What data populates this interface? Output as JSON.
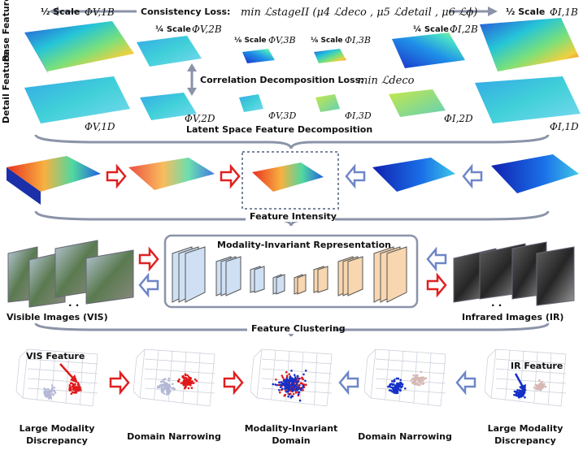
{
  "row_labels": {
    "base": "Base Feature",
    "detail": "Detail Feature"
  },
  "scales": {
    "half": "½ Scale",
    "quarter": "¼ Scale",
    "eighth": "⅛ Scale"
  },
  "feature_symbols": {
    "v1b": "ΦV,1B",
    "v2b": "ΦV,2B",
    "v3b": "ΦV,3B",
    "i3b": "ΦI,3B",
    "i2b": "ΦI,2B",
    "i1b": "ΦI,1B",
    "v1d": "ΦV,1D",
    "v2d": "ΦV,2D",
    "v3d": "ΦV,3D",
    "i3d": "ΦI,3D",
    "i2d": "ΦI,2D",
    "i1d": "ΦI,1D"
  },
  "consistency_loss": {
    "label": "Consistency Loss:",
    "formula": "min ℒstageII (μ4 ℒdeco ,  μ5 ℒdetail ,  μ6 ℒϕ)"
  },
  "correlation_loss": {
    "label": "Correlation Decomposition Loss:",
    "formula": "min ℒdeco"
  },
  "section_titles": {
    "latent": "Latent Space Feature Decomposition",
    "intensity": "Feature Intensity",
    "mir": "Modality-Invariant Representation",
    "clustering": "Feature Clustering"
  },
  "images": {
    "visible": "Visible Images (VIS)",
    "infrared": "Infrared Images (IR)",
    "dots": "· ·"
  },
  "cluster_labels": {
    "vis_feature": "VIS Feature",
    "ir_feature": "IR Feature",
    "large_discrepancy_left": "Large Modality Discrepancy",
    "domain_narrowing_left": "Domain Narrowing",
    "invariant_domain": "Modality-Invariant Domain",
    "domain_narrowing_right": "Domain Narrowing",
    "large_discrepancy_right": "Large Modality Discrepancy"
  },
  "colors": {
    "vis": "#e01b1b",
    "ir": "#1530c8",
    "vis_faded": "#b4b8d6",
    "ir_faded": "#d6b8b4",
    "connector": "#8b93a8",
    "arrow_red": "#e02020",
    "arrow_blue": "#6e86c8"
  }
}
